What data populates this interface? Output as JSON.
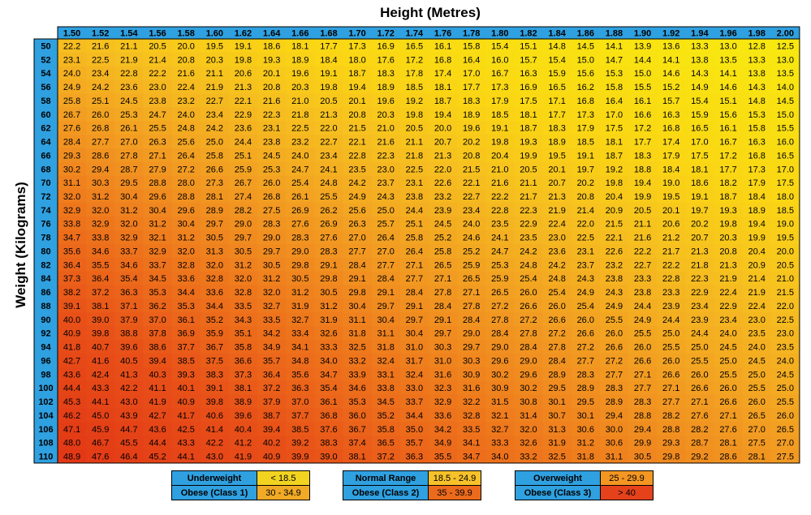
{
  "chart_data": {
    "type": "heatmap",
    "xlabel": "Height (Metres)",
    "ylabel": "Weight (Kilograms)",
    "x": [
      "1.50",
      "1.52",
      "1.54",
      "1.56",
      "1.58",
      "1.60",
      "1.62",
      "1.64",
      "1.66",
      "1.68",
      "1.70",
      "1.72",
      "1.74",
      "1.76",
      "1.78",
      "1.80",
      "1.82",
      "1.84",
      "1.86",
      "1.88",
      "1.90",
      "1.92",
      "1.94",
      "1.96",
      "1.98",
      "2.00"
    ],
    "y": [
      "50",
      "52",
      "54",
      "56",
      "58",
      "60",
      "62",
      "64",
      "66",
      "68",
      "70",
      "72",
      "74",
      "76",
      "78",
      "80",
      "82",
      "84",
      "86",
      "88",
      "90",
      "92",
      "94",
      "96",
      "98",
      "100",
      "102",
      "104",
      "106",
      "108",
      "110"
    ],
    "values": [
      [
        22.2,
        21.6,
        21.1,
        20.5,
        20.0,
        19.5,
        19.1,
        18.6,
        18.1,
        17.7,
        17.3,
        16.9,
        16.5,
        16.1,
        15.8,
        15.4,
        15.1,
        14.8,
        14.5,
        14.1,
        13.9,
        13.6,
        13.3,
        13.0,
        12.8,
        12.5
      ],
      [
        23.1,
        22.5,
        21.9,
        21.4,
        20.8,
        20.3,
        19.8,
        19.3,
        18.9,
        18.4,
        18.0,
        17.6,
        17.2,
        16.8,
        16.4,
        16.0,
        15.7,
        15.4,
        15.0,
        14.7,
        14.4,
        14.1,
        13.8,
        13.5,
        13.3,
        13.0
      ],
      [
        24.0,
        23.4,
        22.8,
        22.2,
        21.6,
        21.1,
        20.6,
        20.1,
        19.6,
        19.1,
        18.7,
        18.3,
        17.8,
        17.4,
        17.0,
        16.7,
        16.3,
        15.9,
        15.6,
        15.3,
        15.0,
        14.6,
        14.3,
        14.1,
        13.8,
        13.5
      ],
      [
        24.9,
        24.2,
        23.6,
        23.0,
        22.4,
        21.9,
        21.3,
        20.8,
        20.3,
        19.8,
        19.4,
        18.9,
        18.5,
        18.1,
        17.7,
        17.3,
        16.9,
        16.5,
        16.2,
        15.8,
        15.5,
        15.2,
        14.9,
        14.6,
        14.3,
        14.0
      ],
      [
        25.8,
        25.1,
        24.5,
        23.8,
        23.2,
        22.7,
        22.1,
        21.6,
        21.0,
        20.5,
        20.1,
        19.6,
        19.2,
        18.7,
        18.3,
        17.9,
        17.5,
        17.1,
        16.8,
        16.4,
        16.1,
        15.7,
        15.4,
        15.1,
        14.8,
        14.5
      ],
      [
        26.7,
        26.0,
        25.3,
        24.7,
        24.0,
        23.4,
        22.9,
        22.3,
        21.8,
        21.3,
        20.8,
        20.3,
        19.8,
        19.4,
        18.9,
        18.5,
        18.1,
        17.7,
        17.3,
        17.0,
        16.6,
        16.3,
        15.9,
        15.6,
        15.3,
        15.0
      ],
      [
        27.6,
        26.8,
        26.1,
        25.5,
        24.8,
        24.2,
        23.6,
        23.1,
        22.5,
        22.0,
        21.5,
        21.0,
        20.5,
        20.0,
        19.6,
        19.1,
        18.7,
        18.3,
        17.9,
        17.5,
        17.2,
        16.8,
        16.5,
        16.1,
        15.8,
        15.5
      ],
      [
        28.4,
        27.7,
        27.0,
        26.3,
        25.6,
        25.0,
        24.4,
        23.8,
        23.2,
        22.7,
        22.1,
        21.6,
        21.1,
        20.7,
        20.2,
        19.8,
        19.3,
        18.9,
        18.5,
        18.1,
        17.7,
        17.4,
        17.0,
        16.7,
        16.3,
        16.0
      ],
      [
        29.3,
        28.6,
        27.8,
        27.1,
        26.4,
        25.8,
        25.1,
        24.5,
        24.0,
        23.4,
        22.8,
        22.3,
        21.8,
        21.3,
        20.8,
        20.4,
        19.9,
        19.5,
        19.1,
        18.7,
        18.3,
        17.9,
        17.5,
        17.2,
        16.8,
        16.5
      ],
      [
        30.2,
        29.4,
        28.7,
        27.9,
        27.2,
        26.6,
        25.9,
        25.3,
        24.7,
        24.1,
        23.5,
        23.0,
        22.5,
        22.0,
        21.5,
        21.0,
        20.5,
        20.1,
        19.7,
        19.2,
        18.8,
        18.4,
        18.1,
        17.7,
        17.3,
        17.0
      ],
      [
        31.1,
        30.3,
        29.5,
        28.8,
        28.0,
        27.3,
        26.7,
        26.0,
        25.4,
        24.8,
        24.2,
        23.7,
        23.1,
        22.6,
        22.1,
        21.6,
        21.1,
        20.7,
        20.2,
        19.8,
        19.4,
        19.0,
        18.6,
        18.2,
        17.9,
        17.5
      ],
      [
        32.0,
        31.2,
        30.4,
        29.6,
        28.8,
        28.1,
        27.4,
        26.8,
        26.1,
        25.5,
        24.9,
        24.3,
        23.8,
        23.2,
        22.7,
        22.2,
        21.7,
        21.3,
        20.8,
        20.4,
        19.9,
        19.5,
        19.1,
        18.7,
        18.4,
        18.0
      ],
      [
        32.9,
        32.0,
        31.2,
        30.4,
        29.6,
        28.9,
        28.2,
        27.5,
        26.9,
        26.2,
        25.6,
        25.0,
        24.4,
        23.9,
        23.4,
        22.8,
        22.3,
        21.9,
        21.4,
        20.9,
        20.5,
        20.1,
        19.7,
        19.3,
        18.9,
        18.5
      ],
      [
        33.8,
        32.9,
        32.0,
        31.2,
        30.4,
        29.7,
        29.0,
        28.3,
        27.6,
        26.9,
        26.3,
        25.7,
        25.1,
        24.5,
        24.0,
        23.5,
        22.9,
        22.4,
        22.0,
        21.5,
        21.1,
        20.6,
        20.2,
        19.8,
        19.4,
        19.0
      ],
      [
        34.7,
        33.8,
        32.9,
        32.1,
        31.2,
        30.5,
        29.7,
        29.0,
        28.3,
        27.6,
        27.0,
        26.4,
        25.8,
        25.2,
        24.6,
        24.1,
        23.5,
        23.0,
        22.5,
        22.1,
        21.6,
        21.2,
        20.7,
        20.3,
        19.9,
        19.5
      ],
      [
        35.6,
        34.6,
        33.7,
        32.9,
        32.0,
        31.3,
        30.5,
        29.7,
        29.0,
        28.3,
        27.7,
        27.0,
        26.4,
        25.8,
        25.2,
        24.7,
        24.2,
        23.6,
        23.1,
        22.6,
        22.2,
        21.7,
        21.3,
        20.8,
        20.4,
        20.0
      ],
      [
        36.4,
        35.5,
        34.6,
        33.7,
        32.8,
        32.0,
        31.2,
        30.5,
        29.8,
        29.1,
        28.4,
        27.7,
        27.1,
        26.5,
        25.9,
        25.3,
        24.8,
        24.2,
        23.7,
        23.2,
        22.7,
        22.2,
        21.8,
        21.3,
        20.9,
        20.5
      ],
      [
        37.3,
        36.4,
        35.4,
        34.5,
        33.6,
        32.8,
        32.0,
        31.2,
        30.5,
        29.8,
        29.1,
        28.4,
        27.7,
        27.1,
        26.5,
        25.9,
        25.4,
        24.8,
        24.3,
        23.8,
        23.3,
        22.8,
        22.3,
        21.9,
        21.4,
        21.0
      ],
      [
        38.2,
        37.2,
        36.3,
        35.3,
        34.4,
        33.6,
        32.8,
        32.0,
        31.2,
        30.5,
        29.8,
        29.1,
        28.4,
        27.8,
        27.1,
        26.5,
        26.0,
        25.4,
        24.9,
        24.3,
        23.8,
        23.3,
        22.9,
        22.4,
        21.9,
        21.5
      ],
      [
        39.1,
        38.1,
        37.1,
        36.2,
        35.3,
        34.4,
        33.5,
        32.7,
        31.9,
        31.2,
        30.4,
        29.7,
        29.1,
        28.4,
        27.8,
        27.2,
        26.6,
        26.0,
        25.4,
        24.9,
        24.4,
        23.9,
        23.4,
        22.9,
        22.4,
        22.0
      ],
      [
        40.0,
        39.0,
        37.9,
        37.0,
        36.1,
        35.2,
        34.3,
        33.5,
        32.7,
        31.9,
        31.1,
        30.4,
        29.7,
        29.1,
        28.4,
        27.8,
        27.2,
        26.6,
        26.0,
        25.5,
        24.9,
        24.4,
        23.9,
        23.4,
        23.0,
        22.5
      ],
      [
        40.9,
        39.8,
        38.8,
        37.8,
        36.9,
        35.9,
        35.1,
        34.2,
        33.4,
        32.6,
        31.8,
        31.1,
        30.4,
        29.7,
        29.0,
        28.4,
        27.8,
        27.2,
        26.6,
        26.0,
        25.5,
        25.0,
        24.4,
        24.0,
        23.5,
        23.0
      ],
      [
        41.8,
        40.7,
        39.6,
        38.6,
        37.7,
        36.7,
        35.8,
        34.9,
        34.1,
        33.3,
        32.5,
        31.8,
        31.0,
        30.3,
        29.7,
        29.0,
        28.4,
        27.8,
        27.2,
        26.6,
        26.0,
        25.5,
        25.0,
        24.5,
        24.0,
        23.5
      ],
      [
        42.7,
        41.6,
        40.5,
        39.4,
        38.5,
        37.5,
        36.6,
        35.7,
        34.8,
        34.0,
        33.2,
        32.4,
        31.7,
        31.0,
        30.3,
        29.6,
        29.0,
        28.4,
        27.7,
        27.2,
        26.6,
        26.0,
        25.5,
        25.0,
        24.5,
        24.0
      ],
      [
        43.6,
        42.4,
        41.3,
        40.3,
        39.3,
        38.3,
        37.3,
        36.4,
        35.6,
        34.7,
        33.9,
        33.1,
        32.4,
        31.6,
        30.9,
        30.2,
        29.6,
        28.9,
        28.3,
        27.7,
        27.1,
        26.6,
        26.0,
        25.5,
        25.0,
        24.5
      ],
      [
        44.4,
        43.3,
        42.2,
        41.1,
        40.1,
        39.1,
        38.1,
        37.2,
        36.3,
        35.4,
        34.6,
        33.8,
        33.0,
        32.3,
        31.6,
        30.9,
        30.2,
        29.5,
        28.9,
        28.3,
        27.7,
        27.1,
        26.6,
        26.0,
        25.5,
        25.0
      ],
      [
        45.3,
        44.1,
        43.0,
        41.9,
        40.9,
        39.8,
        38.9,
        37.9,
        37.0,
        36.1,
        35.3,
        34.5,
        33.7,
        32.9,
        32.2,
        31.5,
        30.8,
        30.1,
        29.5,
        28.9,
        28.3,
        27.7,
        27.1,
        26.6,
        26.0,
        25.5
      ],
      [
        46.2,
        45.0,
        43.9,
        42.7,
        41.7,
        40.6,
        39.6,
        38.7,
        37.7,
        36.8,
        36.0,
        35.2,
        34.4,
        33.6,
        32.8,
        32.1,
        31.4,
        30.7,
        30.1,
        29.4,
        28.8,
        28.2,
        27.6,
        27.1,
        26.5,
        26.0
      ],
      [
        47.1,
        45.9,
        44.7,
        43.6,
        42.5,
        41.4,
        40.4,
        39.4,
        38.5,
        37.6,
        36.7,
        35.8,
        35.0,
        34.2,
        33.5,
        32.7,
        32.0,
        31.3,
        30.6,
        30.0,
        29.4,
        28.8,
        28.2,
        27.6,
        27.0,
        26.5
      ],
      [
        48.0,
        46.7,
        45.5,
        44.4,
        43.3,
        42.2,
        41.2,
        40.2,
        39.2,
        38.3,
        37.4,
        36.5,
        35.7,
        34.9,
        34.1,
        33.3,
        32.6,
        31.9,
        31.2,
        30.6,
        29.9,
        29.3,
        28.7,
        28.1,
        27.5,
        27.0
      ],
      [
        48.9,
        47.6,
        46.4,
        45.2,
        44.1,
        43.0,
        41.9,
        40.9,
        39.9,
        39.0,
        38.1,
        37.2,
        36.3,
        35.5,
        34.7,
        34.0,
        33.2,
        32.5,
        31.8,
        31.1,
        30.5,
        29.8,
        29.2,
        28.6,
        28.1,
        27.5
      ]
    ]
  },
  "legend": [
    {
      "label": "Underweight",
      "range": "< 18.5",
      "color": "#f2d320"
    },
    {
      "label": "Normal Range",
      "range": "18.5 - 24.9",
      "color": "#f6c12a"
    },
    {
      "label": "Overweight",
      "range": "25 - 29.9",
      "color": "#f39622"
    },
    {
      "label": "Obese (Class 1)",
      "range": "30 - 34.9",
      "color": "#f1aa25"
    },
    {
      "label": "Obese (Class 2)",
      "range": "35 - 39.9",
      "color": "#ec6a1c"
    },
    {
      "label": "Obese (Class 3)",
      "range": "> 40",
      "color": "#e5421c"
    }
  ],
  "colors": {
    "header": "#2fa0e0",
    "border": "#000000"
  }
}
